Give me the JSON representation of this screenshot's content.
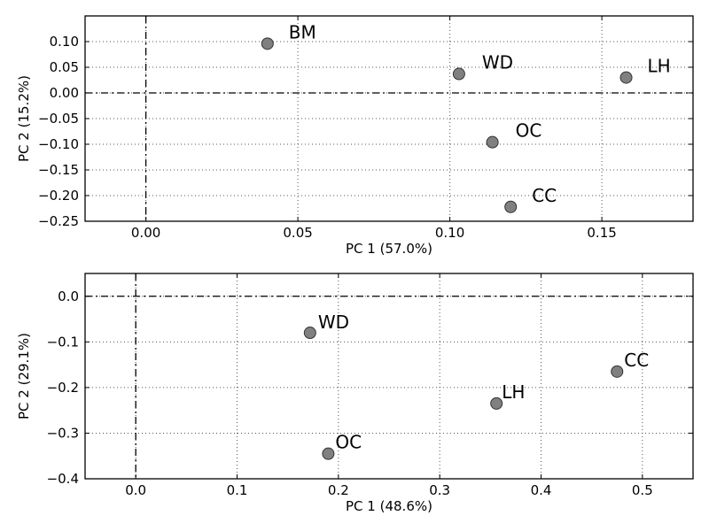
{
  "chart_data": [
    {
      "type": "scatter",
      "xlabel": "PC 1 (57.0%)",
      "ylabel": "PC 2 (15.2%)",
      "xlim": [
        -0.02,
        0.18
      ],
      "ylim": [
        -0.25,
        0.15
      ],
      "xticks": [
        0.0,
        0.05,
        0.1,
        0.15
      ],
      "xtick_labels": [
        "0.00",
        "0.05",
        "0.10",
        "0.15"
      ],
      "yticks": [
        -0.25,
        -0.2,
        -0.15,
        -0.1,
        -0.05,
        0.0,
        0.05,
        0.1
      ],
      "ytick_labels": [
        "−0.25",
        "−0.20",
        "−0.15",
        "−0.10",
        "−0.05",
        "0.00",
        "0.05",
        "0.10"
      ],
      "grid": true,
      "reference_lines": {
        "x": 0,
        "y": 0
      },
      "points": [
        {
          "label": "BM",
          "x": 0.04,
          "y": 0.096
        },
        {
          "label": "WD",
          "x": 0.103,
          "y": 0.037
        },
        {
          "label": "LH",
          "x": 0.158,
          "y": 0.03
        },
        {
          "label": "OC",
          "x": 0.114,
          "y": -0.096
        },
        {
          "label": "CC",
          "x": 0.12,
          "y": -0.222
        }
      ]
    },
    {
      "type": "scatter",
      "xlabel": "PC 1 (48.6%)",
      "ylabel": "PC 2 (29.1%)",
      "xlim": [
        -0.05,
        0.55
      ],
      "ylim": [
        -0.4,
        0.05
      ],
      "xticks": [
        0.0,
        0.1,
        0.2,
        0.3,
        0.4,
        0.5
      ],
      "xtick_labels": [
        "0.0",
        "0.1",
        "0.2",
        "0.3",
        "0.4",
        "0.5"
      ],
      "yticks": [
        -0.4,
        -0.3,
        -0.2,
        -0.1,
        0.0
      ],
      "ytick_labels": [
        "−0.4",
        "−0.3",
        "−0.2",
        "−0.1",
        "0.0"
      ],
      "grid": true,
      "reference_lines": {
        "x": 0,
        "y": 0
      },
      "points": [
        {
          "label": "WD",
          "x": 0.172,
          "y": -0.08
        },
        {
          "label": "CC",
          "x": 0.475,
          "y": -0.165
        },
        {
          "label": "LH",
          "x": 0.356,
          "y": -0.235
        },
        {
          "label": "OC",
          "x": 0.19,
          "y": -0.345
        }
      ]
    }
  ],
  "colors": {
    "marker_fill": "#808080",
    "marker_edge": "#333333"
  }
}
